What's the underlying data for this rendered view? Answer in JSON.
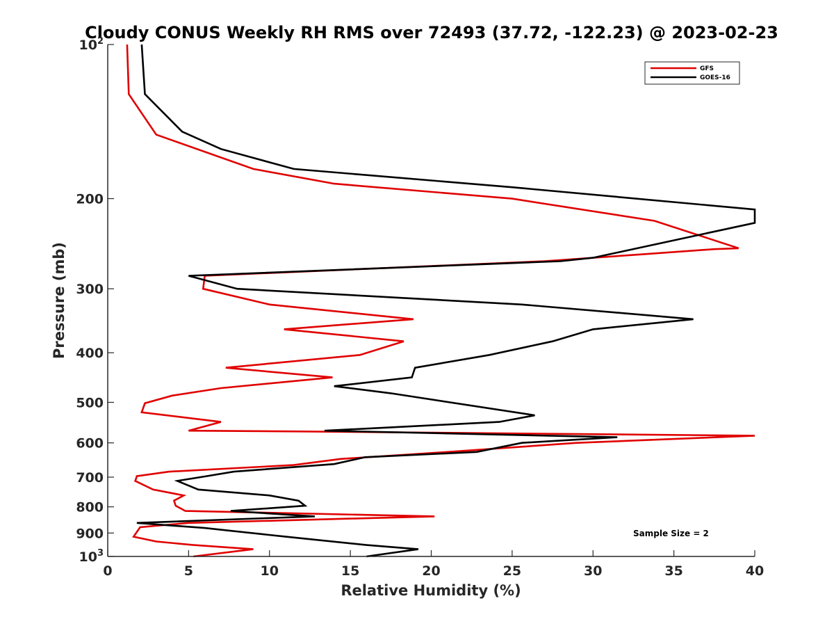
{
  "chart_data": {
    "type": "line",
    "title": "Cloudy CONUS Weekly RH RMS over 72493 (37.72, -122.23) @ 2023-02-23",
    "xlabel": "Relative Humidity (%)",
    "ylabel": "Pressure (mb)",
    "xlim": [
      0,
      40
    ],
    "ylim": [
      100,
      1000
    ],
    "y_scale": "log",
    "y_reversed": true,
    "grid": false,
    "legend_position": "top-right",
    "x_ticks": [
      0,
      5,
      10,
      15,
      20,
      25,
      30,
      35,
      40
    ],
    "x_tick_labels": [
      "0",
      "5",
      "10",
      "15",
      "20",
      "25",
      "30",
      "35",
      "40"
    ],
    "y_ticks": [
      100,
      200,
      300,
      400,
      500,
      600,
      700,
      800,
      900,
      1000
    ],
    "y_tick_labels": [
      {
        "base": "10",
        "exp": "2"
      },
      {
        "base": "200"
      },
      {
        "base": "300"
      },
      {
        "base": "400"
      },
      {
        "base": "500"
      },
      {
        "base": "600"
      },
      {
        "base": "700"
      },
      {
        "base": "800"
      },
      {
        "base": "900"
      },
      {
        "base": "10",
        "exp": "3"
      }
    ],
    "annotation": "Sample Size = 2",
    "series": [
      {
        "name": "GFS",
        "color": "#e00000",
        "points": [
          [
            1.2,
            100
          ],
          [
            1.3,
            125
          ],
          [
            3.0,
            150
          ],
          [
            9.0,
            175
          ],
          [
            14.0,
            187
          ],
          [
            25.0,
            200
          ],
          [
            33.8,
            221
          ],
          [
            39.0,
            250
          ],
          [
            37.5,
            251
          ],
          [
            33.0,
            257
          ],
          [
            27.0,
            265
          ],
          [
            6.0,
            283
          ],
          [
            5.9,
            300
          ],
          [
            10.0,
            322
          ],
          [
            18.9,
            344
          ],
          [
            10.9,
            360
          ],
          [
            18.3,
            380
          ],
          [
            15.6,
            404
          ],
          [
            7.3,
            428
          ],
          [
            13.9,
            447
          ],
          [
            7.0,
            469
          ],
          [
            4.0,
            485
          ],
          [
            2.3,
            502
          ],
          [
            2.1,
            523
          ],
          [
            7.0,
            546
          ],
          [
            5.0,
            568
          ],
          [
            12.0,
            570
          ],
          [
            40.0,
            581
          ],
          [
            29.0,
            600
          ],
          [
            21.0,
            625
          ],
          [
            14.4,
            645
          ],
          [
            11.5,
            663
          ],
          [
            3.8,
            683
          ],
          [
            1.8,
            697
          ],
          [
            1.7,
            712
          ],
          [
            2.8,
            740
          ],
          [
            4.7,
            760
          ],
          [
            4.1,
            778
          ],
          [
            4.2,
            796
          ],
          [
            4.8,
            815
          ],
          [
            20.2,
            835
          ],
          [
            5.0,
            860
          ],
          [
            2.0,
            877
          ],
          [
            1.6,
            915
          ],
          [
            3.0,
            935
          ],
          [
            5.3,
            950
          ],
          [
            9.0,
            968
          ],
          [
            5.3,
            1000
          ]
        ]
      },
      {
        "name": "GOES-16",
        "color": "#000000",
        "points": [
          [
            2.1,
            100
          ],
          [
            2.3,
            125
          ],
          [
            4.6,
            148
          ],
          [
            7.0,
            160
          ],
          [
            11.5,
            175
          ],
          [
            25.0,
            190
          ],
          [
            40.0,
            210
          ],
          [
            40.0,
            223
          ],
          [
            30.0,
            261
          ],
          [
            28.0,
            265
          ],
          [
            5.0,
            283
          ],
          [
            8.0,
            300
          ],
          [
            25.6,
            322
          ],
          [
            36.2,
            344
          ],
          [
            30.0,
            360
          ],
          [
            27.5,
            380
          ],
          [
            23.6,
            404
          ],
          [
            19.0,
            428
          ],
          [
            18.8,
            447
          ],
          [
            14.0,
            465
          ],
          [
            17.5,
            480
          ],
          [
            26.4,
            530
          ],
          [
            24.2,
            546
          ],
          [
            13.4,
            568
          ],
          [
            31.5,
            585
          ],
          [
            25.6,
            600
          ],
          [
            22.8,
            625
          ],
          [
            15.9,
            640
          ],
          [
            14.0,
            660
          ],
          [
            7.8,
            683
          ],
          [
            6.1,
            697
          ],
          [
            4.3,
            712
          ],
          [
            5.6,
            740
          ],
          [
            10.0,
            760
          ],
          [
            11.8,
            778
          ],
          [
            12.2,
            796
          ],
          [
            7.6,
            815
          ],
          [
            12.8,
            835
          ],
          [
            1.8,
            860
          ],
          [
            6.0,
            880
          ],
          [
            11.0,
            915
          ],
          [
            16.0,
            950
          ],
          [
            19.2,
            968
          ],
          [
            16.0,
            1000
          ]
        ]
      }
    ]
  }
}
